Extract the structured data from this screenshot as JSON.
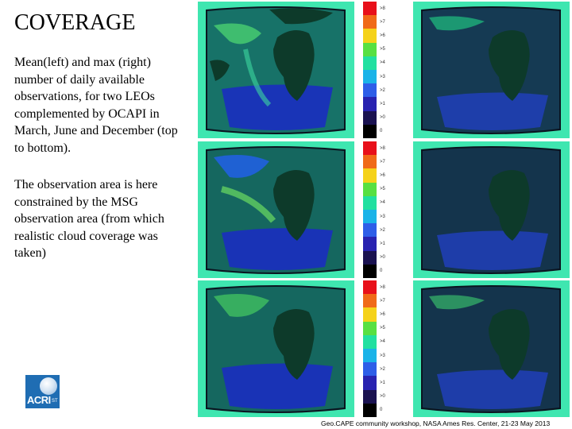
{
  "title": "COVERAGE",
  "description": "Mean(left) and max (right) number of daily available observations, for two LEOs complemented by OCAPI in March, June and December (top to bottom).",
  "note": "The observation area is here constrained by the MSG observation area (from which realistic cloud coverage was taken)",
  "logo_text": "ACRI",
  "logo_suffix": "ST",
  "footer": "Geo.CAPE community workshop, NASA Ames Res. Center, 21-23 May 2013",
  "colorbar": {
    "ticks": [
      ">8",
      ">7",
      ">6",
      ">5",
      ">4",
      ">3",
      ">2",
      ">1",
      ">0",
      "0"
    ],
    "colors": [
      "#e8101a",
      "#f06a18",
      "#f5d21a",
      "#58e042",
      "#22e0a0",
      "#1ab3e8",
      "#2e5ee8",
      "#2822b0",
      "#1a1250",
      "#000000"
    ]
  },
  "rows": [
    {
      "month": "March"
    },
    {
      "month": "June"
    },
    {
      "month": "December"
    }
  ]
}
